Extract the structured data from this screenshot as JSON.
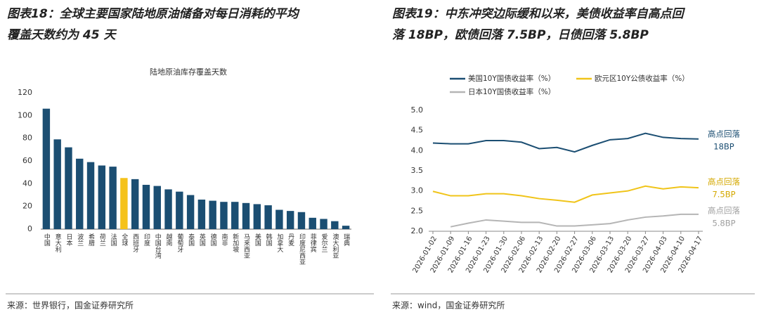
{
  "header": {
    "left": [
      "图表18：全球主要国家陆地原油储备对每日消耗的平均",
      "覆盖天数约为 45 天"
    ],
    "right": [
      "图表19：中东冲突边际缓和以来，美债收益率自高点回",
      "落 18BP，欧债回落 7.5BP，日债回落 5.8BP"
    ]
  },
  "sources": [
    "来源：世界银行，国金证券研究所",
    "来源：wind，国金证券研究所"
  ],
  "chart_data": [
    {
      "type": "bar",
      "title": "陆地原油库存覆盖天数",
      "categories": [
        "中国",
        "意大利",
        "日本",
        "波兰",
        "希腊",
        "荷兰",
        "法国",
        "全球",
        "西班牙",
        "印度",
        "中国台湾",
        "越南",
        "葡萄牙",
        "泰国",
        "英国",
        "德国",
        "南非",
        "新加坡",
        "马来西亚",
        "美国",
        "韩国",
        "加拿大",
        "丹麦",
        "印度尼西亚",
        "菲律宾",
        "爱尔兰",
        "澳大利亚",
        "瑞典"
      ],
      "values": [
        106,
        79,
        72,
        62,
        59,
        56,
        55,
        45,
        44,
        39,
        38,
        35,
        33,
        30,
        26,
        25,
        24,
        24,
        23,
        22,
        21,
        17,
        16,
        15,
        10,
        9,
        7,
        3
      ],
      "colors": [
        "#1b4e72",
        "#1b4e72",
        "#1b4e72",
        "#1b4e72",
        "#1b4e72",
        "#1b4e72",
        "#1b4e72",
        "#f5c21b",
        "#1b4e72",
        "#1b4e72",
        "#1b4e72",
        "#1b4e72",
        "#1b4e72",
        "#1b4e72",
        "#1b4e72",
        "#1b4e72",
        "#1b4e72",
        "#1b4e72",
        "#1b4e72",
        "#1b4e72",
        "#1b4e72",
        "#1b4e72",
        "#1b4e72",
        "#1b4e72",
        "#1b4e72",
        "#1b4e72",
        "#1b4e72",
        "#1b4e72"
      ],
      "ylim": [
        0,
        120
      ],
      "yticks": [
        0,
        20,
        40,
        60,
        80,
        100,
        120
      ]
    },
    {
      "type": "line",
      "x": [
        "2026-01-02",
        "2026-01-09",
        "2026-01-16",
        "2026-01-23",
        "2026-01-30",
        "2026-02-06",
        "2026-02-13",
        "2026-02-20",
        "2026-02-27",
        "2026-03-06",
        "2026-03-13",
        "2026-03-20",
        "2026-03-27",
        "2026-04-03",
        "2026-04-10",
        "2026-04-17"
      ],
      "series": [
        {
          "name": "美国10Y国债收益率（%）",
          "color": "#1b4e72",
          "values": [
            4.19,
            4.17,
            4.17,
            4.25,
            4.25,
            4.21,
            4.05,
            4.08,
            3.97,
            4.13,
            4.27,
            4.3,
            4.43,
            4.33,
            4.3,
            4.29
          ]
        },
        {
          "name": "欧元区10Y公债收益率（%）",
          "color": "#f0c419",
          "values": [
            2.99,
            2.88,
            2.88,
            2.93,
            2.93,
            2.88,
            2.81,
            2.77,
            2.72,
            2.9,
            2.95,
            3.0,
            3.12,
            3.05,
            3.1,
            3.08
          ]
        },
        {
          "name": "日本10Y国债收益率（%）",
          "color": "#b5b5b5",
          "values": [
            null,
            2.11,
            2.2,
            2.28,
            2.25,
            2.22,
            2.22,
            2.13,
            2.13,
            2.16,
            2.19,
            2.28,
            2.35,
            2.38,
            2.42,
            2.42
          ]
        }
      ],
      "ylim": [
        2.0,
        5.0
      ],
      "yticks": [
        {
          "value": 2,
          "label": "2.0"
        },
        {
          "value": 2.5,
          "label": "2.5"
        },
        {
          "value": 3,
          "label": "3.0"
        },
        {
          "value": 3.5,
          "label": "3.5"
        },
        {
          "value": 4,
          "label": "4.0"
        },
        {
          "value": 4.5,
          "label": "4.5"
        },
        {
          "value": 5,
          "label": "5.0"
        }
      ],
      "annotations": [
        {
          "lines": [
            "高点回落",
            "18BP"
          ],
          "color": "#1b4e72"
        },
        {
          "lines": [
            "高点回落",
            "7.5BP"
          ],
          "color": "#d4a800"
        },
        {
          "lines": [
            "高点回落",
            "5.8BP"
          ],
          "color": "#a0a0a0"
        }
      ]
    }
  ]
}
